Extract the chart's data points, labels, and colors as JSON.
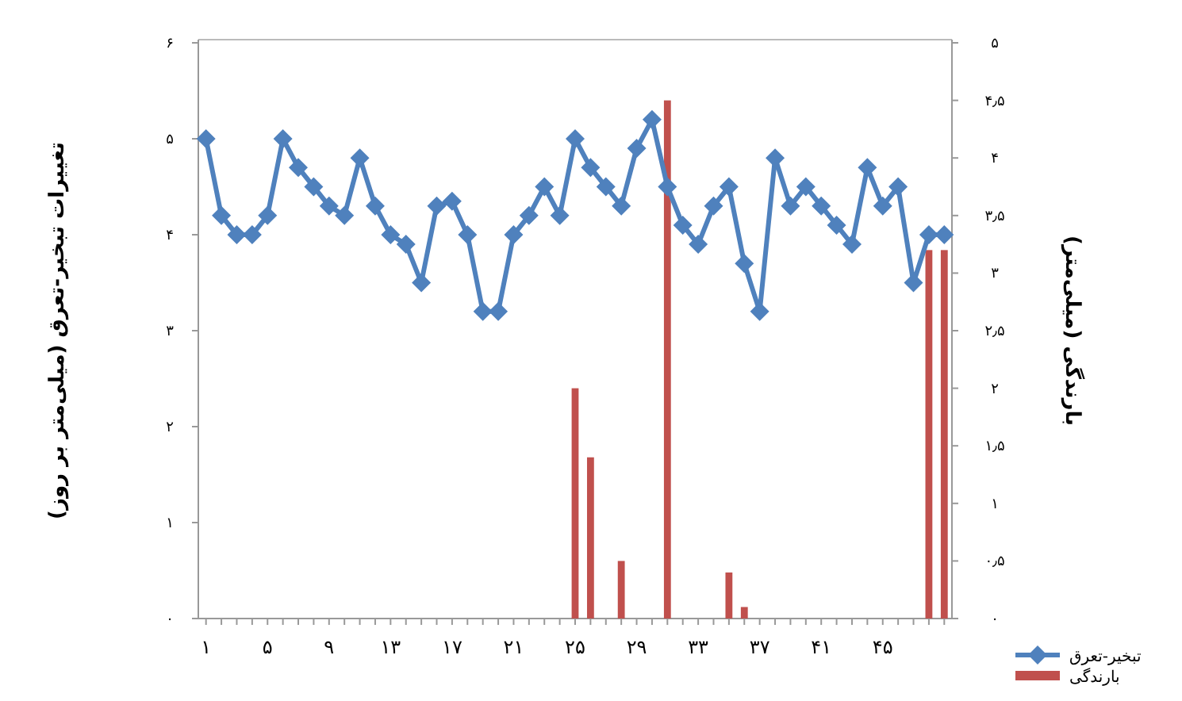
{
  "chart_data": {
    "type": "line",
    "categories": [
      "۱",
      null,
      null,
      null,
      "۵",
      null,
      null,
      null,
      "۹",
      null,
      null,
      null,
      "۱۳",
      null,
      null,
      null,
      "۱۷",
      null,
      null,
      null,
      "۲۱",
      null,
      null,
      null,
      "۲۵",
      null,
      null,
      null,
      "۲۹",
      null,
      null,
      null,
      "۳۳",
      null,
      null,
      null,
      "۳۷",
      null,
      null,
      null,
      "۴۱",
      null,
      null,
      null,
      "۴۵",
      null,
      null,
      null,
      null
    ],
    "ylabel": "تغییرات تبخیر-تعرق (میلی‌متر بر روز)",
    "y2label": "بارندگی (میلی‌متر)",
    "ylim": [
      0,
      6
    ],
    "yticks": [
      {
        "value": 0,
        "label": "۰"
      },
      {
        "value": 1,
        "label": "۱"
      },
      {
        "value": 2,
        "label": "۲"
      },
      {
        "value": 3,
        "label": "۳"
      },
      {
        "value": 4,
        "label": "۴"
      },
      {
        "value": 5,
        "label": "۵"
      },
      {
        "value": 6,
        "label": "۶"
      }
    ],
    "y2lim": [
      0,
      5
    ],
    "y2ticks": [
      {
        "value": 0,
        "label": "۰"
      },
      {
        "value": 0.5,
        "label": "۰٫۵"
      },
      {
        "value": 1,
        "label": "۱"
      },
      {
        "value": 1.5,
        "label": "۱٫۵"
      },
      {
        "value": 2,
        "label": "۲"
      },
      {
        "value": 2.5,
        "label": "۲٫۵"
      },
      {
        "value": 3,
        "label": "۳"
      },
      {
        "value": 3.5,
        "label": "۳٫۵"
      },
      {
        "value": 4,
        "label": "۴"
      },
      {
        "value": 4.5,
        "label": "۴٫۵"
      },
      {
        "value": 5,
        "label": "۵"
      }
    ],
    "legend": "bottom right",
    "marker": "diamond",
    "series": [
      {
        "name": "تبخیر-تعرق",
        "color": "#4f81bd",
        "values": [
          5.0,
          4.2,
          4.0,
          4.0,
          4.2,
          5.0,
          4.7,
          4.5,
          4.3,
          4.2,
          4.8,
          4.3,
          4.0,
          3.9,
          3.5,
          4.3,
          4.35,
          4.0,
          3.2,
          3.2,
          4.0,
          4.2,
          4.5,
          4.2,
          5.0,
          4.7,
          4.5,
          4.3,
          4.9,
          5.2,
          4.5,
          4.1,
          3.9,
          4.3,
          4.5,
          3.7,
          3.2,
          4.8,
          4.3,
          4.5,
          4.3,
          4.1,
          3.9,
          4.7,
          4.3,
          4.5,
          3.5,
          4.0,
          4.0
        ]
      },
      {
        "name": "بارندگی",
        "type": "bar",
        "axis": "y2",
        "color": "#c0504d",
        "values": [
          null,
          null,
          null,
          null,
          null,
          null,
          null,
          null,
          null,
          null,
          null,
          null,
          null,
          null,
          null,
          null,
          null,
          null,
          null,
          null,
          null,
          null,
          null,
          null,
          2.0,
          1.4,
          null,
          0.5,
          null,
          null,
          4.5,
          null,
          null,
          null,
          0.4,
          0.1,
          null,
          null,
          null,
          null,
          null,
          null,
          null,
          null,
          null,
          null,
          null,
          3.2,
          3.2
        ]
      }
    ]
  }
}
